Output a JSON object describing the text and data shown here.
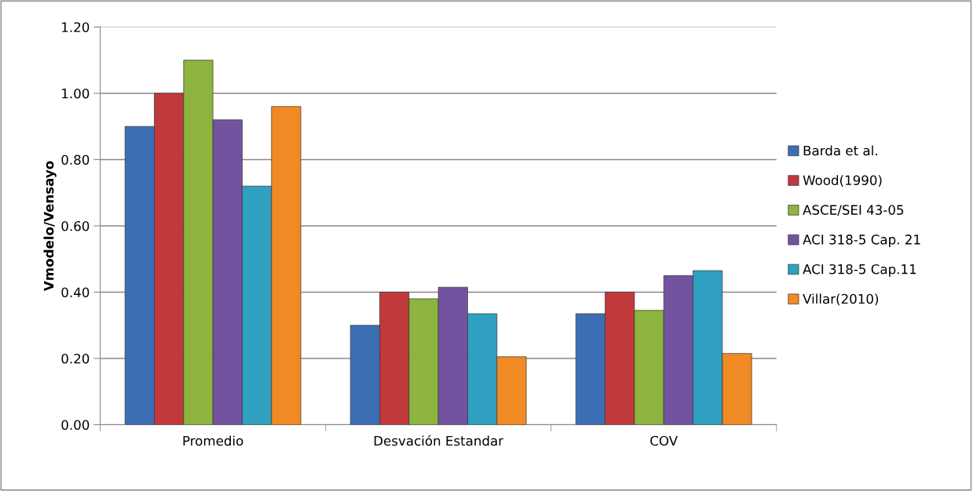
{
  "chart_data": {
    "type": "bar",
    "ylabel": "Vmodelo/Vensayo",
    "categories": [
      "Promedio",
      "Desvación Estandar",
      "COV"
    ],
    "series": [
      {
        "name": "Barda et al.",
        "color": "#3c6eb4",
        "values": [
          0.9,
          0.3,
          0.335
        ]
      },
      {
        "name": "Wood(1990)",
        "color": "#c0393b",
        "values": [
          1.0,
          0.4,
          0.4
        ]
      },
      {
        "name": "ASCE/SEI 43-05",
        "color": "#8db43f",
        "values": [
          1.1,
          0.38,
          0.345
        ]
      },
      {
        "name": "ACI 318-5 Cap. 21",
        "color": "#7352a0",
        "values": [
          0.92,
          0.415,
          0.45
        ]
      },
      {
        "name": "ACI 318-5 Cap.11",
        "color": "#2fa0c0",
        "values": [
          0.72,
          0.335,
          0.465
        ]
      },
      {
        "name": "Villar(2010)",
        "color": "#f08a24",
        "values": [
          0.96,
          0.205,
          0.215
        ]
      }
    ],
    "ylim": [
      0,
      1.2
    ],
    "yticks": [
      {
        "value": 0,
        "label": "0.00"
      },
      {
        "value": 0.2,
        "label": "0.20"
      },
      {
        "value": 0.4,
        "label": "0.40"
      },
      {
        "value": 0.6,
        "label": "0.60"
      },
      {
        "value": 0.8,
        "label": "0.80"
      },
      {
        "value": 1.0,
        "label": "1.00"
      },
      {
        "value": 1.2,
        "label": "1.20"
      }
    ],
    "grid": "y",
    "legend": "right"
  }
}
